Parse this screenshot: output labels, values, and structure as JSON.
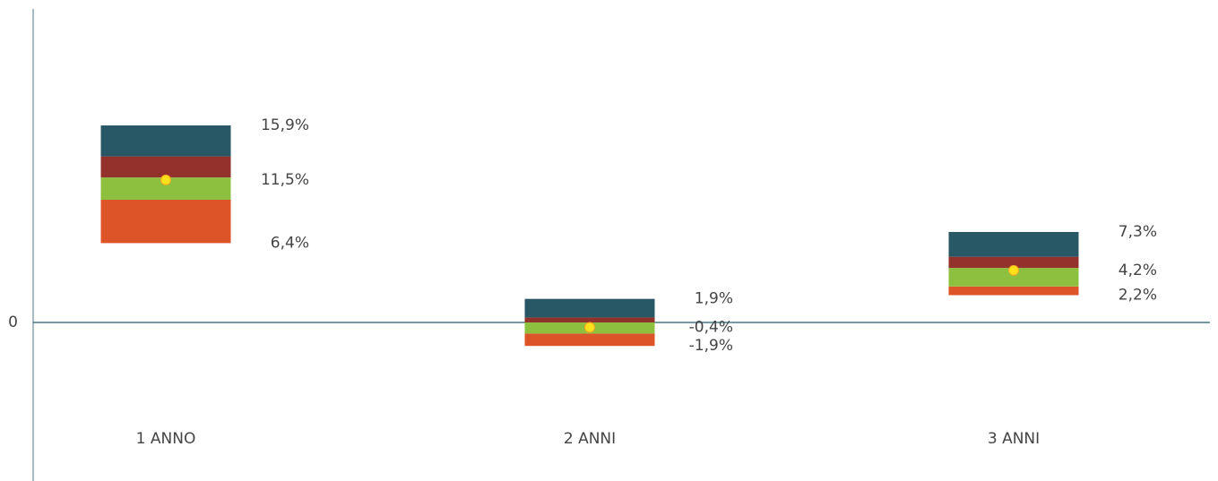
{
  "chart_data": {
    "type": "floating_stack",
    "categories": [
      "1 ANNO",
      "2 ANNI",
      "3 ANNI"
    ],
    "base": [
      6.4,
      -1.9,
      2.2
    ],
    "base_labels": [
      "6,4%",
      "-1,9%",
      "2,2%"
    ],
    "series": [
      {
        "color": "#dd5429",
        "values": [
          3.5,
          1.0,
          0.7
        ]
      },
      {
        "color": "#8dc03f",
        "values": [
          1.8,
          0.9,
          1.5
        ]
      },
      {
        "color": "#93322c",
        "values": [
          1.7,
          0.4,
          0.9
        ]
      },
      {
        "color": "#285866",
        "values": [
          2.5,
          1.5,
          2.0
        ]
      }
    ],
    "median": [
      11.5,
      -0.4,
      4.2
    ],
    "median_labels": [
      "11,5%",
      "-0,4%",
      "4,2%"
    ],
    "median_color": "#ffe01a",
    "high": [
      15.9,
      1.9,
      7.3
    ],
    "high_labels": [
      "15,9%",
      "1,9%",
      "7,3%"
    ],
    "ylim": [
      -12.8,
      25.3
    ],
    "yticks": [
      0
    ]
  }
}
